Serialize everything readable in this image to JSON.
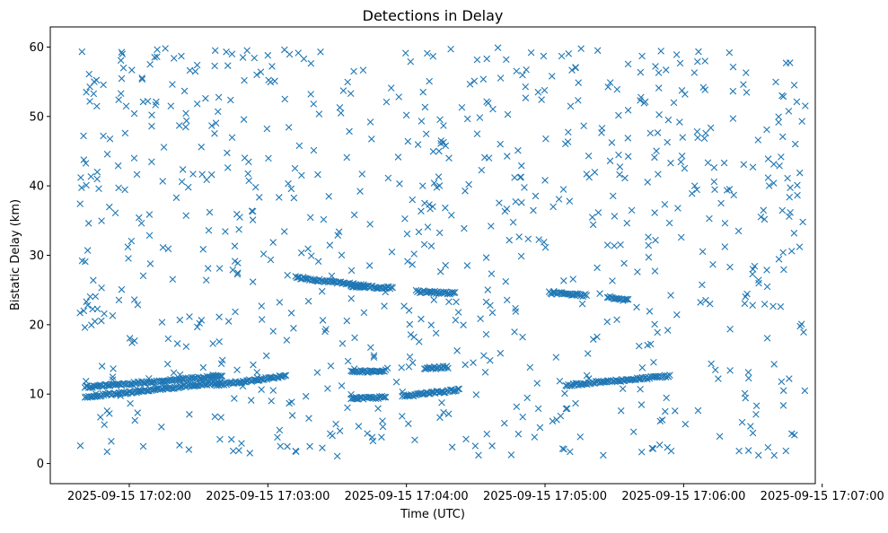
{
  "chart_data": {
    "type": "scatter",
    "title": "Detections in Delay",
    "xlabel": "Time (UTC)",
    "ylabel": "Bistatic Delay (km)",
    "marker": "x",
    "color": "#1f77b4",
    "grid": false,
    "x_unit": "minutes past 2025-09-15 17:00:00",
    "xlim": [
      1.43,
      6.95
    ],
    "ylim": [
      -2.9,
      62.9
    ],
    "xticks": [
      {
        "value": 2,
        "label": "2025-09-15 17:02:00"
      },
      {
        "value": 3,
        "label": "2025-09-15 17:03:00"
      },
      {
        "value": 4,
        "label": "2025-09-15 17:04:00"
      },
      {
        "value": 5,
        "label": "2025-09-15 17:05:00"
      },
      {
        "value": 6,
        "label": "2025-09-15 17:06:00"
      },
      {
        "value": 7,
        "label": "2025-09-15 17:07:00"
      }
    ],
    "yticks": [
      0,
      10,
      20,
      30,
      40,
      50,
      60
    ],
    "tracks": [
      {
        "x_start": 1.68,
        "x_end": 2.67,
        "y_start": 11.0,
        "y_end": 12.6
      },
      {
        "x_start": 1.68,
        "x_end": 2.67,
        "y_start": 9.6,
        "y_end": 11.7
      },
      {
        "x_start": 2.62,
        "x_end": 3.13,
        "y_start": 11.3,
        "y_end": 12.6
      },
      {
        "x_start": 3.2,
        "x_end": 3.7,
        "y_start": 26.8,
        "y_end": 25.6
      },
      {
        "x_start": 3.6,
        "x_end": 3.9,
        "y_start": 25.6,
        "y_end": 25.3
      },
      {
        "x_start": 3.6,
        "x_end": 3.85,
        "y_start": 13.2,
        "y_end": 13.4
      },
      {
        "x_start": 3.6,
        "x_end": 3.85,
        "y_start": 9.3,
        "y_end": 9.6
      },
      {
        "x_start": 3.97,
        "x_end": 4.38,
        "y_start": 9.7,
        "y_end": 10.6
      },
      {
        "x_start": 4.13,
        "x_end": 4.3,
        "y_start": 13.7,
        "y_end": 13.9
      },
      {
        "x_start": 4.07,
        "x_end": 4.35,
        "y_start": 24.8,
        "y_end": 24.5
      },
      {
        "x_start": 5.03,
        "x_end": 5.3,
        "y_start": 24.6,
        "y_end": 24.2
      },
      {
        "x_start": 5.15,
        "x_end": 5.9,
        "y_start": 11.3,
        "y_end": 12.6
      },
      {
        "x_start": 5.45,
        "x_end": 5.6,
        "y_start": 24.0,
        "y_end": 23.5
      }
    ],
    "noise_points": 700,
    "points": [
      {
        "x": 1.65,
        "y": 41.2
      },
      {
        "x": 1.66,
        "y": 29.2
      },
      {
        "x": 1.67,
        "y": 47.2
      },
      {
        "x": 1.69,
        "y": 53.5
      },
      {
        "x": 1.71,
        "y": 56.1
      },
      {
        "x": 1.69,
        "y": 40.1
      },
      {
        "x": 1.7,
        "y": 30.7
      },
      {
        "x": 1.74,
        "y": 26.4
      },
      {
        "x": 1.68,
        "y": 19.6
      },
      {
        "x": 1.7,
        "y": 22.8
      },
      {
        "x": 1.8,
        "y": 25.3
      },
      {
        "x": 1.78,
        "y": 39.6
      },
      {
        "x": 1.82,
        "y": 5.6
      },
      {
        "x": 1.84,
        "y": 1.7
      },
      {
        "x": 1.87,
        "y": 3.2
      },
      {
        "x": 1.84,
        "y": 7.6
      },
      {
        "x": 1.88,
        "y": 21.3
      },
      {
        "x": 1.9,
        "y": 36.1
      },
      {
        "x": 1.92,
        "y": 42.9
      },
      {
        "x": 1.94,
        "y": 53.3
      },
      {
        "x": 1.95,
        "y": 59.0
      },
      {
        "x": 1.97,
        "y": 47.6
      },
      {
        "x": 1.99,
        "y": 31.2
      },
      {
        "x": 2.02,
        "y": 17.4
      },
      {
        "x": 2.06,
        "y": 7.3
      },
      {
        "x": 2.1,
        "y": 52.1
      },
      {
        "x": 2.15,
        "y": 57.5
      },
      {
        "x": 2.2,
        "y": 58.6
      },
      {
        "x": 2.26,
        "y": 59.8
      },
      {
        "x": 2.3,
        "y": 51.5
      },
      {
        "x": 2.34,
        "y": 38.3
      },
      {
        "x": 2.38,
        "y": 40.6
      },
      {
        "x": 2.43,
        "y": 2.0
      },
      {
        "x": 2.46,
        "y": 41.7
      },
      {
        "x": 2.49,
        "y": 57.4
      },
      {
        "x": 2.52,
        "y": 45.6
      },
      {
        "x": 2.55,
        "y": 52.6
      },
      {
        "x": 2.58,
        "y": 36.2
      },
      {
        "x": 2.62,
        "y": 59.5
      },
      {
        "x": 2.64,
        "y": 50.7
      },
      {
        "x": 2.7,
        "y": 59.3
      },
      {
        "x": 2.75,
        "y": 1.8
      },
      {
        "x": 2.81,
        "y": 2.9
      },
      {
        "x": 2.82,
        "y": 58.5
      },
      {
        "x": 2.85,
        "y": 59.5
      },
      {
        "x": 2.87,
        "y": 1.5
      },
      {
        "x": 2.92,
        "y": 56.0
      },
      {
        "x": 3.0,
        "y": 58.8
      },
      {
        "x": 3.05,
        "y": 55.1
      },
      {
        "x": 3.09,
        "y": 2.5
      },
      {
        "x": 3.12,
        "y": 59.6
      },
      {
        "x": 3.2,
        "y": 1.8
      },
      {
        "x": 3.26,
        "y": 58.3
      },
      {
        "x": 3.33,
        "y": 51.8
      },
      {
        "x": 3.38,
        "y": 59.3
      },
      {
        "x": 3.45,
        "y": 4.3
      },
      {
        "x": 3.52,
        "y": 4.7
      },
      {
        "x": 3.57,
        "y": 44.1
      },
      {
        "x": 3.62,
        "y": 56.5
      },
      {
        "x": 3.68,
        "y": 41.7
      },
      {
        "x": 3.74,
        "y": 49.2
      },
      {
        "x": 3.82,
        "y": 3.8
      },
      {
        "x": 3.89,
        "y": 54.1
      },
      {
        "x": 3.95,
        "y": 40.3
      },
      {
        "x": 4.03,
        "y": 57.9
      },
      {
        "x": 4.06,
        "y": 3.4
      },
      {
        "x": 4.12,
        "y": 53.5
      },
      {
        "x": 4.15,
        "y": 59.1
      },
      {
        "x": 4.2,
        "y": 40.4
      },
      {
        "x": 4.25,
        "y": 46.5
      },
      {
        "x": 4.32,
        "y": 59.7
      },
      {
        "x": 4.4,
        "y": 51.3
      },
      {
        "x": 4.45,
        "y": 40.2
      },
      {
        "x": 4.49,
        "y": 55.1
      },
      {
        "x": 4.52,
        "y": 1.2
      },
      {
        "x": 4.58,
        "y": 58.3
      },
      {
        "x": 4.61,
        "y": 34.2
      },
      {
        "x": 4.66,
        "y": 59.9
      },
      {
        "x": 4.72,
        "y": 58.2
      },
      {
        "x": 4.78,
        "y": 41.2
      },
      {
        "x": 4.83,
        "y": 42.9
      },
      {
        "x": 4.9,
        "y": 59.2
      },
      {
        "x": 4.95,
        "y": 53.5
      },
      {
        "x": 5.0,
        "y": 40.8
      },
      {
        "x": 5.05,
        "y": 55.8
      },
      {
        "x": 5.12,
        "y": 58.7
      },
      {
        "x": 5.18,
        "y": 1.7
      },
      {
        "x": 5.22,
        "y": 57.0
      },
      {
        "x": 5.3,
        "y": 41.7
      },
      {
        "x": 5.38,
        "y": 59.5
      },
      {
        "x": 5.42,
        "y": 1.2
      },
      {
        "x": 5.47,
        "y": 43.6
      },
      {
        "x": 5.52,
        "y": 53.9
      },
      {
        "x": 5.6,
        "y": 50.9
      },
      {
        "x": 5.7,
        "y": 58.7
      },
      {
        "x": 5.76,
        "y": 47.6
      },
      {
        "x": 5.82,
        "y": 56.3
      },
      {
        "x": 5.89,
        "y": 49.5
      },
      {
        "x": 5.95,
        "y": 58.9
      },
      {
        "x": 6.01,
        "y": 53.2
      },
      {
        "x": 6.08,
        "y": 40.0
      },
      {
        "x": 6.1,
        "y": 57.9
      },
      {
        "x": 6.16,
        "y": 47.6
      },
      {
        "x": 6.22,
        "y": 40.6
      },
      {
        "x": 6.27,
        "y": 37.5
      },
      {
        "x": 6.33,
        "y": 59.2
      },
      {
        "x": 6.4,
        "y": 1.8
      },
      {
        "x": 6.45,
        "y": 56.3
      },
      {
        "x": 6.5,
        "y": 42.7
      },
      {
        "x": 6.54,
        "y": 1.2
      },
      {
        "x": 6.6,
        "y": 48.1
      },
      {
        "x": 6.65,
        "y": 40.4
      },
      {
        "x": 6.7,
        "y": 22.6
      },
      {
        "x": 6.75,
        "y": 41.1
      },
      {
        "x": 6.78,
        "y": 30.6
      },
      {
        "x": 6.8,
        "y": 4.1
      },
      {
        "x": 6.82,
        "y": 40.1
      },
      {
        "x": 6.74,
        "y": 57.7
      },
      {
        "x": 6.86,
        "y": 34.8
      },
      {
        "x": 6.71,
        "y": 53.0
      }
    ]
  }
}
